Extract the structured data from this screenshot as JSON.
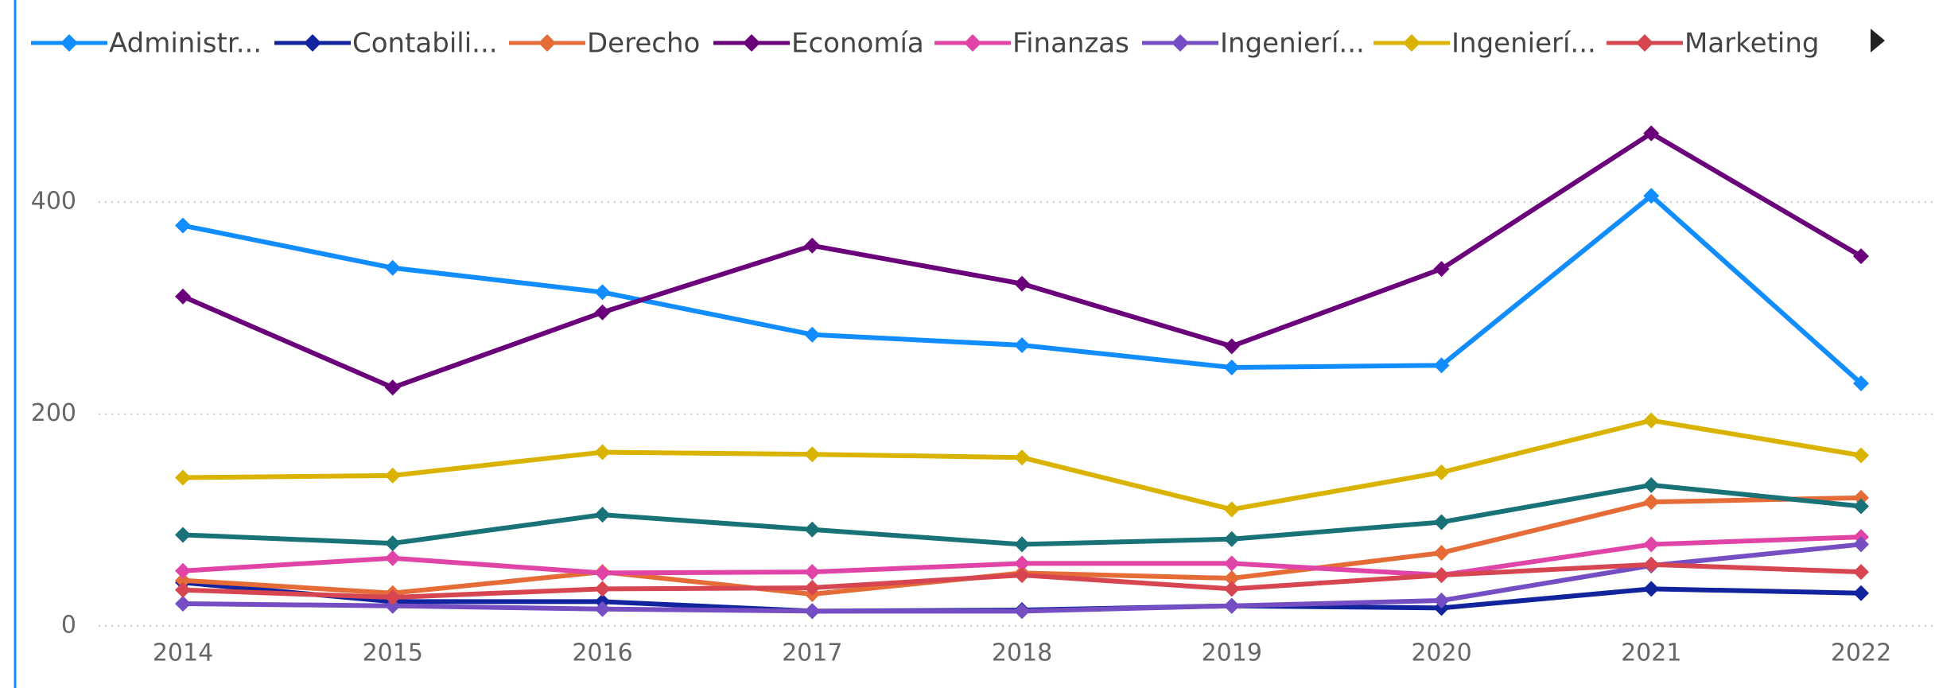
{
  "chart_data": {
    "type": "line",
    "categories": [
      "2014",
      "2015",
      "2016",
      "2017",
      "2018",
      "2019",
      "2020",
      "2021",
      "2022"
    ],
    "series": [
      {
        "name": "Administr...",
        "color": "#118DFF",
        "values": [
          378,
          338,
          315,
          275,
          265,
          244,
          246,
          406,
          229
        ]
      },
      {
        "name": "Contabili...",
        "color": "#12239E",
        "values": [
          41,
          23,
          23,
          14,
          15,
          19,
          17,
          35,
          31
        ]
      },
      {
        "name": "Derecho",
        "color": "#E66C37",
        "values": [
          43,
          31,
          51,
          30,
          50,
          45,
          69,
          117,
          121
        ]
      },
      {
        "name": "Economía",
        "color": "#6B007B",
        "values": [
          311,
          225,
          296,
          359,
          323,
          264,
          337,
          465,
          349
        ]
      },
      {
        "name": "Finanzas",
        "color": "#E044A7",
        "values": [
          52,
          64,
          50,
          51,
          59,
          59,
          48,
          77,
          84
        ]
      },
      {
        "name": "Ingenierí...",
        "color": "#744EC2",
        "values": [
          21,
          19,
          16,
          14,
          14,
          19,
          24,
          57,
          77
        ]
      },
      {
        "name": "Ingenierí...",
        "color": "#D9B300",
        "values": [
          140,
          142,
          164,
          162,
          159,
          110,
          145,
          194,
          161
        ]
      },
      {
        "name": "Marketing",
        "color": "#D64550",
        "values": [
          34,
          27,
          35,
          36,
          48,
          35,
          48,
          58,
          51
        ]
      },
      {
        "name": null,
        "color": "#197278",
        "values": [
          86,
          78,
          105,
          91,
          77,
          82,
          98,
          133,
          113
        ]
      }
    ],
    "ylim": [
      0,
      500
    ],
    "yticks": [
      0,
      200,
      400
    ],
    "grid": true
  }
}
